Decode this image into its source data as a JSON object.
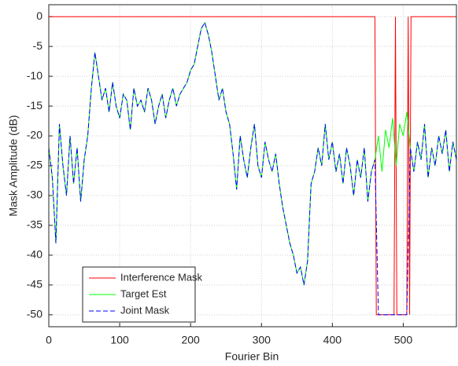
{
  "chart_data": {
    "type": "line",
    "xlabel": "Fourier Bin",
    "ylabel": "Mask Amplitude (dB)",
    "xlim": [
      0,
      575
    ],
    "ylim": [
      -52,
      2
    ],
    "xticks": [
      0,
      100,
      200,
      300,
      400,
      500
    ],
    "yticks": [
      0,
      -5,
      -10,
      -15,
      -20,
      -25,
      -30,
      -35,
      -40,
      -45,
      -50
    ],
    "grid": true,
    "legend_position": "lower left",
    "series": [
      {
        "name": "Interference Mask",
        "color": "#ff0000",
        "style": "solid",
        "x": [
          0,
          460,
          462,
          487,
          489,
          491,
          505,
          507,
          509,
          511,
          575
        ],
        "values": [
          0,
          0,
          -50,
          -50,
          0,
          -50,
          -50,
          0,
          -50,
          0,
          0
        ]
      },
      {
        "name": "Target Est",
        "color": "#00ff00",
        "style": "solid",
        "x": [
          0,
          5,
          10,
          15,
          20,
          25,
          30,
          35,
          40,
          45,
          50,
          55,
          60,
          65,
          70,
          75,
          80,
          85,
          90,
          95,
          100,
          105,
          110,
          115,
          120,
          125,
          130,
          135,
          140,
          145,
          150,
          155,
          160,
          165,
          170,
          175,
          180,
          185,
          190,
          195,
          200,
          205,
          210,
          215,
          220,
          225,
          230,
          235,
          240,
          245,
          250,
          255,
          260,
          265,
          270,
          275,
          280,
          285,
          290,
          295,
          300,
          305,
          310,
          315,
          320,
          325,
          330,
          335,
          340,
          345,
          350,
          355,
          360,
          365,
          370,
          375,
          380,
          385,
          390,
          395,
          400,
          405,
          410,
          415,
          420,
          425,
          430,
          435,
          440,
          445,
          450,
          455,
          460,
          465,
          470,
          475,
          480,
          485,
          490,
          495,
          500,
          505,
          510,
          515,
          520,
          525,
          530,
          535,
          540,
          545,
          550,
          555,
          560,
          565,
          570,
          575
        ],
        "values": [
          -22,
          -27,
          -38,
          -18,
          -25,
          -30,
          -20,
          -28,
          -22,
          -31,
          -24,
          -20,
          -12,
          -6,
          -10,
          -14,
          -12,
          -16,
          -11,
          -15,
          -17,
          -13,
          -14,
          -19,
          -12,
          -15,
          -14,
          -16,
          -12,
          -14,
          -18,
          -15,
          -13,
          -17,
          -14,
          -12,
          -15,
          -13,
          -12,
          -11,
          -9,
          -8,
          -5,
          -2,
          -1,
          -3,
          -6,
          -10,
          -14,
          -12,
          -16,
          -18,
          -23,
          -29,
          -20,
          -24,
          -27,
          -22,
          -18,
          -25,
          -27,
          -21,
          -24,
          -26,
          -23,
          -28,
          -32,
          -35,
          -38,
          -40,
          -43,
          -42,
          -45,
          -41,
          -28,
          -26,
          -22,
          -25,
          -18,
          -24,
          -21,
          -26,
          -23,
          -28,
          -22,
          -25,
          -30,
          -24,
          -27,
          -22,
          -31,
          -26,
          -24,
          -20,
          -26,
          -19,
          -22,
          -17,
          -25,
          -18,
          -20,
          -16,
          -22,
          -26,
          -21,
          -24,
          -18,
          -27,
          -22,
          -25,
          -20,
          -23,
          -19,
          -26,
          -21,
          -24
        ]
      },
      {
        "name": "Joint Mask",
        "color": "#0000ff",
        "style": "dashed",
        "x": [
          0,
          5,
          10,
          15,
          20,
          25,
          30,
          35,
          40,
          45,
          50,
          55,
          60,
          65,
          70,
          75,
          80,
          85,
          90,
          95,
          100,
          105,
          110,
          115,
          120,
          125,
          130,
          135,
          140,
          145,
          150,
          155,
          160,
          165,
          170,
          175,
          180,
          185,
          190,
          195,
          200,
          205,
          210,
          215,
          220,
          225,
          230,
          235,
          240,
          245,
          250,
          255,
          260,
          265,
          270,
          275,
          280,
          285,
          290,
          295,
          300,
          305,
          310,
          315,
          320,
          325,
          330,
          335,
          340,
          345,
          350,
          355,
          360,
          365,
          370,
          375,
          380,
          385,
          390,
          395,
          400,
          405,
          410,
          415,
          420,
          425,
          430,
          435,
          440,
          445,
          450,
          455,
          460,
          465,
          470,
          475,
          480,
          485,
          490,
          495,
          500,
          505,
          510,
          515,
          520,
          525,
          530,
          535,
          540,
          545,
          550,
          555,
          560,
          565,
          570,
          575
        ],
        "values": [
          -22,
          -27,
          -38,
          -18,
          -25,
          -30,
          -20,
          -28,
          -22,
          -31,
          -24,
          -20,
          -12,
          -6,
          -10,
          -14,
          -12,
          -16,
          -11,
          -15,
          -17,
          -13,
          -14,
          -19,
          -12,
          -15,
          -14,
          -16,
          -12,
          -14,
          -18,
          -15,
          -13,
          -17,
          -14,
          -12,
          -15,
          -13,
          -12,
          -11,
          -9,
          -8,
          -5,
          -2,
          -1,
          -3,
          -6,
          -10,
          -14,
          -12,
          -16,
          -18,
          -23,
          -29,
          -20,
          -24,
          -27,
          -22,
          -18,
          -25,
          -27,
          -21,
          -24,
          -26,
          -23,
          -28,
          -32,
          -35,
          -38,
          -40,
          -43,
          -42,
          -45,
          -41,
          -28,
          -26,
          -22,
          -25,
          -18,
          -24,
          -21,
          -26,
          -23,
          -28,
          -22,
          -25,
          -30,
          -24,
          -27,
          -22,
          -31,
          -26,
          -24,
          -50,
          -50,
          -50,
          -50,
          -50,
          -50,
          -50,
          -50,
          -50,
          -22,
          -26,
          -21,
          -24,
          -18,
          -27,
          -22,
          -25,
          -20,
          -23,
          -19,
          -26,
          -21,
          -24
        ]
      }
    ]
  }
}
